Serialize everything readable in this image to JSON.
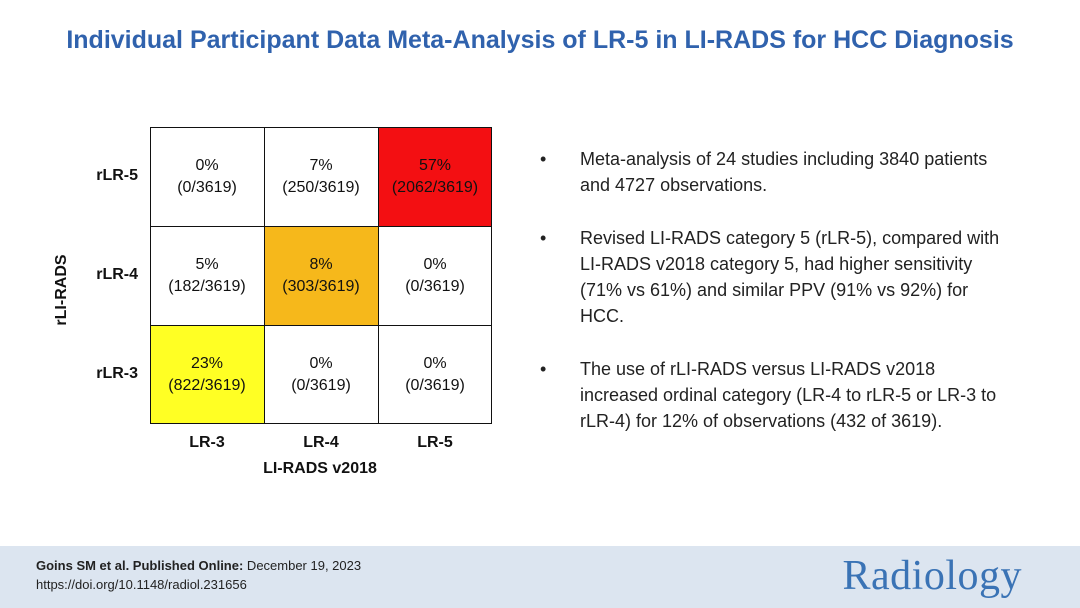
{
  "title": "Individual Participant Data Meta-Analysis of LR-5 in LI-RADS for HCC Diagnosis",
  "chart_data": {
    "type": "heatmap",
    "xlabel": "LI-RADS v2018",
    "ylabel": "rLI-RADS",
    "x_categories": [
      "LR-3",
      "LR-4",
      "LR-5"
    ],
    "y_categories": [
      "rLR-5",
      "rLR-4",
      "rLR-3"
    ],
    "cells": [
      [
        {
          "pct": "0%",
          "count": "(0/3619)",
          "color": "#ffffff"
        },
        {
          "pct": "7%",
          "count": "(250/3619)",
          "color": "#ffffff"
        },
        {
          "pct": "57%",
          "count": "(2062/3619)",
          "color": "#f30f12"
        }
      ],
      [
        {
          "pct": "5%",
          "count": "(182/3619)",
          "color": "#ffffff"
        },
        {
          "pct": "8%",
          "count": "(303/3619)",
          "color": "#f6b81b"
        },
        {
          "pct": "0%",
          "count": "(0/3619)",
          "color": "#ffffff"
        }
      ],
      [
        {
          "pct": "23%",
          "count": "(822/3619)",
          "color": "#ffff24"
        },
        {
          "pct": "0%",
          "count": "(0/3619)",
          "color": "#ffffff"
        },
        {
          "pct": "0%",
          "count": "(0/3619)",
          "color": "#ffffff"
        }
      ]
    ]
  },
  "bullets": [
    {
      "symbol": "•",
      "text": "Meta-analysis of 24 studies including 3840 patients and 4727 observations."
    },
    {
      "symbol": "•",
      "text": "Revised LI-RADS category 5 (rLR-5), compared with LI-RADS v2018 category 5, had higher sensitivity (71% vs 61%) and similar PPV (91% vs 92%) for HCC."
    },
    {
      "symbol": "•",
      "text": "The use of rLI-RADS versus LI-RADS v2018 increased ordinal category (LR-4 to rLR-5 or LR-3 to rLR-4) for 12% of observations (432 of 3619)."
    }
  ],
  "footer": {
    "authors": "Goins SM et al. Published Online:",
    "date": " December 19, 2023",
    "doi": "https://doi.org/10.1148/radiol.231656",
    "journal": "Radiology"
  }
}
